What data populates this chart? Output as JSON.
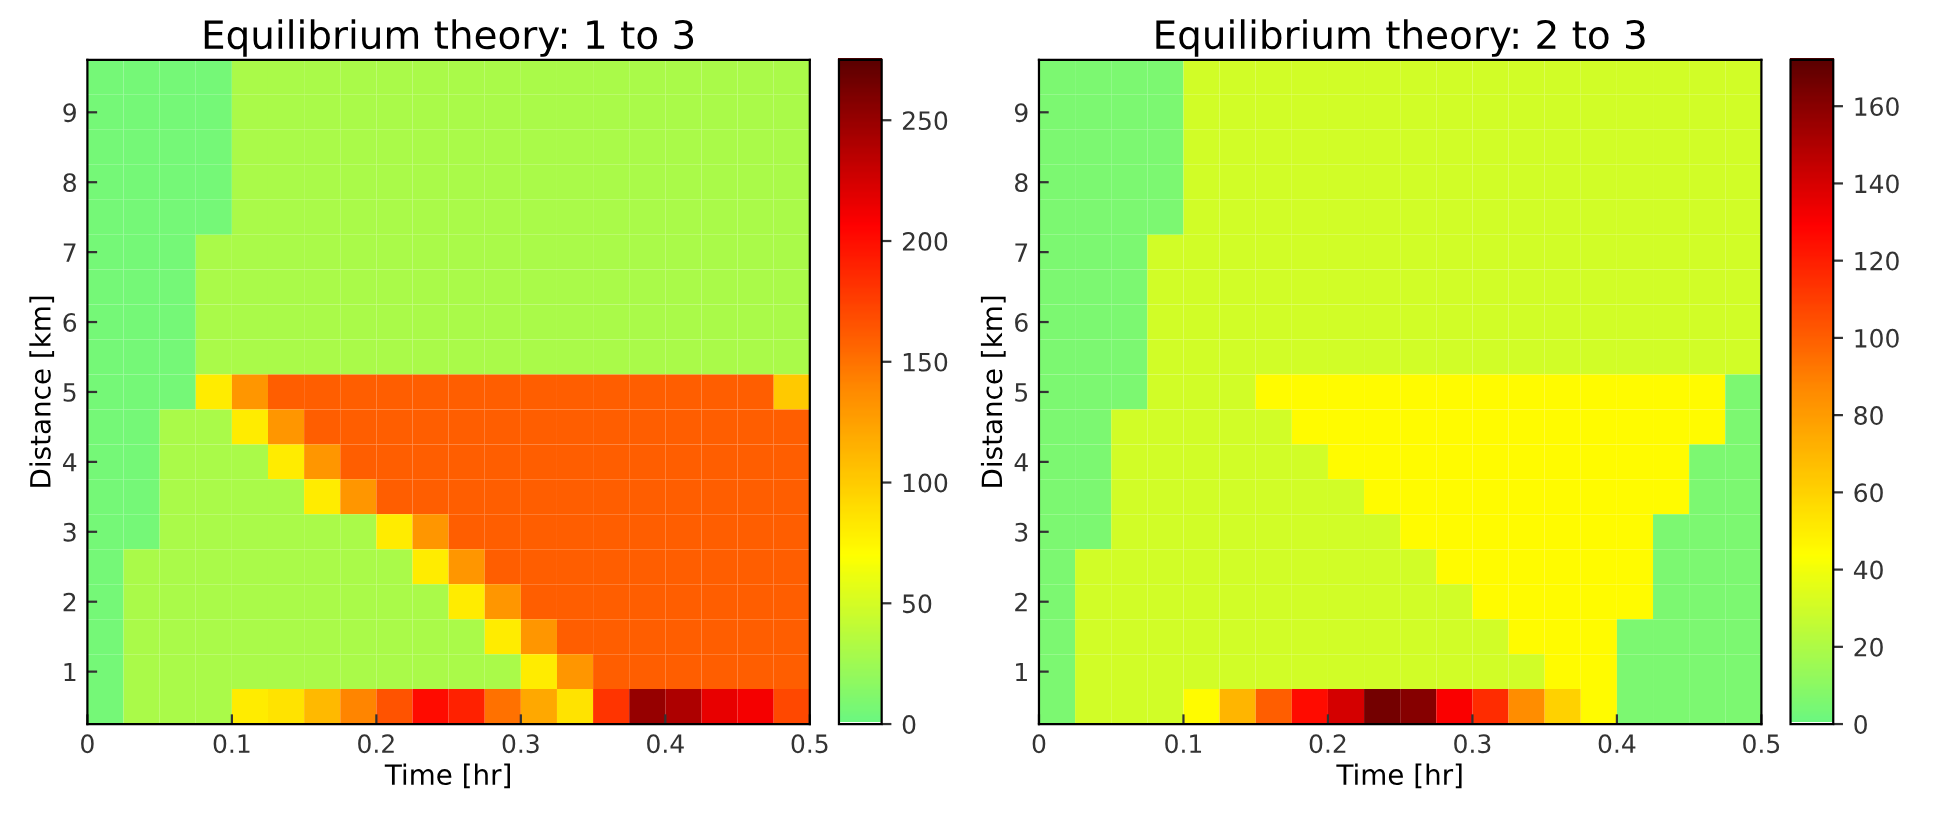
{
  "chart_data": [
    {
      "type": "heatmap",
      "title": "Equilibrium theory: 1 to 3",
      "xlabel": "Time [hr]",
      "ylabel": "Distance [km]",
      "x": [
        0.0125,
        0.0375,
        0.0625,
        0.0875,
        0.1125,
        0.1375,
        0.1625,
        0.1875,
        0.2125,
        0.2375,
        0.2625,
        0.2875,
        0.3125,
        0.3375,
        0.3625,
        0.3875,
        0.4125,
        0.4375,
        0.4625,
        0.4875
      ],
      "y": [
        9.5,
        9.0,
        8.5,
        8.0,
        7.5,
        7.0,
        6.5,
        6.0,
        5.5,
        5.0,
        4.5,
        4.0,
        3.5,
        3.0,
        2.5,
        2.0,
        1.5,
        1.0,
        0.5
      ],
      "xlim": [
        0,
        0.5
      ],
      "xticks": [
        0,
        0.1,
        0.2,
        0.3,
        0.4,
        0.5
      ],
      "ylim": [
        0.25,
        9.75
      ],
      "yticks": [
        1,
        2,
        3,
        4,
        5,
        6,
        7,
        8,
        9
      ],
      "clim": [
        0,
        275
      ],
      "cticks": [
        0,
        50,
        100,
        150,
        200,
        250
      ],
      "colors": [
        "#6cf77f",
        "#ffff00",
        "#ff8a00",
        "#ff0000",
        "#5a0000"
      ],
      "cells": [
        [
          5,
          5,
          5,
          5,
          30,
          30,
          30,
          30,
          30,
          30,
          30,
          30,
          30,
          30,
          30,
          30,
          30,
          30,
          30,
          30
        ],
        [
          5,
          5,
          5,
          5,
          30,
          30,
          30,
          30,
          30,
          30,
          30,
          30,
          30,
          30,
          30,
          30,
          30,
          30,
          30,
          30
        ],
        [
          5,
          5,
          5,
          5,
          30,
          30,
          30,
          30,
          30,
          30,
          30,
          30,
          30,
          30,
          30,
          30,
          30,
          30,
          30,
          30
        ],
        [
          5,
          5,
          5,
          5,
          30,
          30,
          30,
          30,
          30,
          30,
          30,
          30,
          30,
          30,
          30,
          30,
          30,
          30,
          30,
          30
        ],
        [
          5,
          5,
          5,
          5,
          30,
          30,
          30,
          30,
          30,
          30,
          30,
          30,
          30,
          30,
          30,
          30,
          30,
          30,
          30,
          30
        ],
        [
          5,
          5,
          5,
          30,
          30,
          30,
          30,
          30,
          30,
          30,
          30,
          30,
          30,
          30,
          30,
          30,
          30,
          30,
          30,
          30
        ],
        [
          5,
          5,
          5,
          30,
          30,
          30,
          30,
          30,
          30,
          30,
          30,
          30,
          30,
          30,
          30,
          30,
          30,
          30,
          30,
          30
        ],
        [
          5,
          5,
          5,
          30,
          30,
          30,
          30,
          30,
          30,
          30,
          30,
          30,
          30,
          30,
          30,
          30,
          30,
          30,
          30,
          30
        ],
        [
          5,
          5,
          5,
          30,
          30,
          30,
          30,
          30,
          30,
          30,
          30,
          30,
          30,
          30,
          30,
          30,
          30,
          30,
          30,
          30
        ],
        [
          5,
          5,
          5,
          80,
          130,
          160,
          160,
          160,
          160,
          160,
          160,
          160,
          160,
          160,
          160,
          160,
          160,
          160,
          160,
          100
        ],
        [
          5,
          5,
          30,
          30,
          80,
          130,
          160,
          160,
          160,
          160,
          160,
          160,
          160,
          160,
          160,
          160,
          160,
          160,
          160,
          160
        ],
        [
          5,
          5,
          30,
          30,
          30,
          80,
          130,
          160,
          160,
          160,
          160,
          160,
          160,
          160,
          160,
          160,
          160,
          160,
          160,
          160
        ],
        [
          5,
          5,
          30,
          30,
          30,
          30,
          80,
          130,
          160,
          160,
          160,
          160,
          160,
          160,
          160,
          160,
          160,
          160,
          160,
          160
        ],
        [
          5,
          5,
          30,
          30,
          30,
          30,
          30,
          30,
          80,
          130,
          160,
          160,
          160,
          160,
          160,
          160,
          160,
          160,
          160,
          160
        ],
        [
          5,
          30,
          30,
          30,
          30,
          30,
          30,
          30,
          30,
          80,
          130,
          160,
          160,
          160,
          160,
          160,
          160,
          160,
          160,
          160
        ],
        [
          5,
          30,
          30,
          30,
          30,
          30,
          30,
          30,
          30,
          30,
          80,
          130,
          160,
          160,
          160,
          160,
          160,
          160,
          160,
          160
        ],
        [
          5,
          30,
          30,
          30,
          30,
          30,
          30,
          30,
          30,
          30,
          30,
          80,
          130,
          160,
          160,
          160,
          160,
          160,
          160,
          160
        ],
        [
          5,
          30,
          30,
          30,
          30,
          30,
          30,
          30,
          30,
          30,
          30,
          30,
          80,
          130,
          160,
          160,
          160,
          160,
          160,
          160
        ],
        [
          5,
          30,
          30,
          30,
          80,
          85,
          110,
          140,
          165,
          200,
          190,
          150,
          120,
          85,
          180,
          250,
          240,
          215,
          210,
          170
        ]
      ]
    },
    {
      "type": "heatmap",
      "title": "Equilibrium theory: 2 to 3",
      "xlabel": "Time [hr]",
      "ylabel": "Distance [km]",
      "x": [
        0.0125,
        0.0375,
        0.0625,
        0.0875,
        0.1125,
        0.1375,
        0.1625,
        0.1875,
        0.2125,
        0.2375,
        0.2625,
        0.2875,
        0.3125,
        0.3375,
        0.3625,
        0.3875,
        0.4125,
        0.4375,
        0.4625,
        0.4875
      ],
      "y": [
        9.5,
        9.0,
        8.5,
        8.0,
        7.5,
        7.0,
        6.5,
        6.0,
        5.5,
        5.0,
        4.5,
        4.0,
        3.5,
        3.0,
        2.5,
        2.0,
        1.5,
        1.0,
        0.5
      ],
      "xlim": [
        0,
        0.5
      ],
      "xticks": [
        0,
        0.1,
        0.2,
        0.3,
        0.4,
        0.5
      ],
      "ylim": [
        0.25,
        9.75
      ],
      "yticks": [
        1,
        2,
        3,
        4,
        5,
        6,
        7,
        8,
        9
      ],
      "clim": [
        0,
        172
      ],
      "cticks": [
        0,
        20,
        40,
        60,
        80,
        100,
        120,
        140,
        160
      ],
      "colors": [
        "#6cf77f",
        "#ffff00",
        "#ff8a00",
        "#ff0000",
        "#5a0000"
      ],
      "cells": [
        [
          5,
          5,
          5,
          5,
          30,
          30,
          30,
          30,
          30,
          30,
          30,
          30,
          30,
          30,
          30,
          30,
          30,
          30,
          30,
          30
        ],
        [
          5,
          5,
          5,
          5,
          30,
          30,
          30,
          30,
          30,
          30,
          30,
          30,
          30,
          30,
          30,
          30,
          30,
          30,
          30,
          30
        ],
        [
          5,
          5,
          5,
          5,
          30,
          30,
          30,
          30,
          30,
          30,
          30,
          30,
          30,
          30,
          30,
          30,
          30,
          30,
          30,
          30
        ],
        [
          5,
          5,
          5,
          5,
          30,
          30,
          30,
          30,
          30,
          30,
          30,
          30,
          30,
          30,
          30,
          30,
          30,
          30,
          30,
          30
        ],
        [
          5,
          5,
          5,
          5,
          30,
          30,
          30,
          30,
          30,
          30,
          30,
          30,
          30,
          30,
          30,
          30,
          30,
          30,
          30,
          30
        ],
        [
          5,
          5,
          5,
          30,
          30,
          30,
          30,
          30,
          30,
          30,
          30,
          30,
          30,
          30,
          30,
          30,
          30,
          30,
          30,
          30
        ],
        [
          5,
          5,
          5,
          30,
          30,
          30,
          30,
          30,
          30,
          30,
          30,
          30,
          30,
          30,
          30,
          30,
          30,
          30,
          30,
          30
        ],
        [
          5,
          5,
          5,
          30,
          30,
          30,
          30,
          30,
          30,
          30,
          30,
          30,
          30,
          30,
          30,
          30,
          30,
          30,
          30,
          30
        ],
        [
          5,
          5,
          5,
          30,
          30,
          30,
          30,
          30,
          30,
          30,
          30,
          30,
          30,
          30,
          30,
          30,
          30,
          30,
          30,
          30
        ],
        [
          5,
          5,
          5,
          30,
          30,
          30,
          45,
          45,
          45,
          45,
          45,
          45,
          45,
          45,
          45,
          45,
          45,
          45,
          45,
          5
        ],
        [
          5,
          5,
          30,
          30,
          30,
          30,
          30,
          45,
          45,
          45,
          45,
          45,
          45,
          45,
          45,
          45,
          45,
          45,
          45,
          5
        ],
        [
          5,
          5,
          30,
          30,
          30,
          30,
          30,
          30,
          45,
          45,
          45,
          45,
          45,
          45,
          45,
          45,
          45,
          45,
          5,
          5
        ],
        [
          5,
          5,
          30,
          30,
          30,
          30,
          30,
          30,
          30,
          45,
          45,
          45,
          45,
          45,
          45,
          45,
          45,
          45,
          5,
          5
        ],
        [
          5,
          5,
          30,
          30,
          30,
          30,
          30,
          30,
          30,
          30,
          45,
          45,
          45,
          45,
          45,
          45,
          45,
          5,
          5,
          5
        ],
        [
          5,
          30,
          30,
          30,
          30,
          30,
          30,
          30,
          30,
          30,
          30,
          45,
          45,
          45,
          45,
          45,
          45,
          5,
          5,
          5
        ],
        [
          5,
          30,
          30,
          30,
          30,
          30,
          30,
          30,
          30,
          30,
          30,
          30,
          45,
          45,
          45,
          45,
          45,
          5,
          5,
          5
        ],
        [
          5,
          30,
          30,
          30,
          30,
          30,
          30,
          30,
          30,
          30,
          30,
          30,
          30,
          45,
          45,
          45,
          5,
          5,
          5,
          5
        ],
        [
          5,
          30,
          30,
          30,
          30,
          30,
          30,
          30,
          30,
          30,
          30,
          30,
          30,
          30,
          45,
          45,
          5,
          5,
          5,
          5
        ],
        [
          5,
          30,
          30,
          30,
          45,
          70,
          100,
          125,
          140,
          165,
          160,
          130,
          115,
          85,
          60,
          45,
          5,
          5,
          5,
          5
        ]
      ]
    }
  ]
}
